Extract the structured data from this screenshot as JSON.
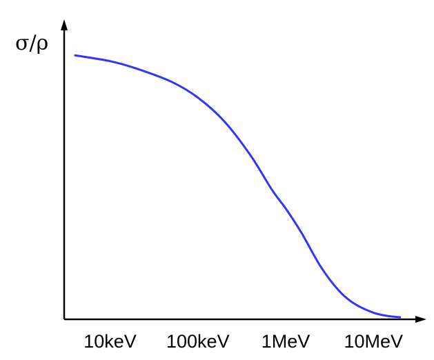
{
  "chart_data": {
    "type": "line",
    "title": "",
    "xlabel": "",
    "ylabel": "σ/ρ",
    "x_scale": "log",
    "y_ticks": "none",
    "grid": false,
    "legend": "none",
    "xlim": [
      3000,
      30000000
    ],
    "ylim": [
      0,
      1.1
    ],
    "x_ticks": [
      {
        "value": 10000,
        "label": "10keV"
      },
      {
        "value": 100000,
        "label": "100keV"
      },
      {
        "value": 1000000,
        "label": "1MeV"
      },
      {
        "value": 10000000,
        "label": "10MeV"
      }
    ],
    "series": [
      {
        "color": "#3333ff",
        "x": [
          4000,
          10000,
          20000,
          50000,
          100000,
          200000,
          400000,
          700000,
          1000000,
          1500000,
          2500000,
          4000000,
          6000000,
          10000000,
          15000000,
          20000000
        ],
        "y": [
          1.0,
          0.978,
          0.95,
          0.9,
          0.84,
          0.75,
          0.62,
          0.49,
          0.42,
          0.33,
          0.2,
          0.11,
          0.06,
          0.025,
          0.012,
          0.008
        ]
      }
    ]
  }
}
